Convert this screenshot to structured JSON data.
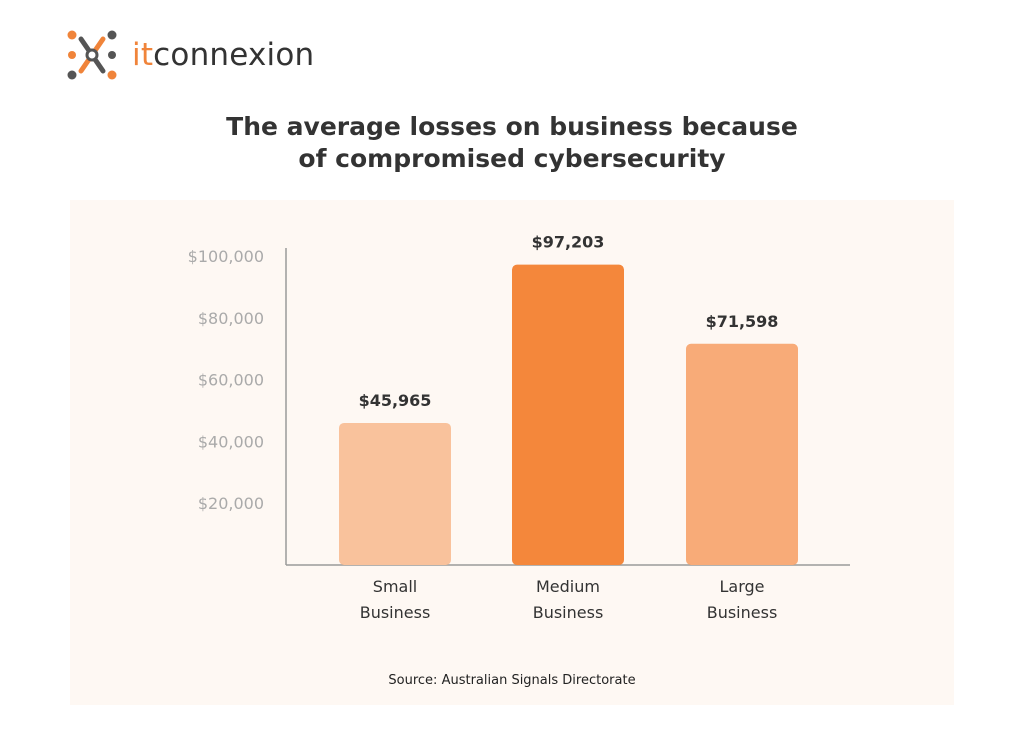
{
  "brand": {
    "prefix": "it",
    "name": "connexion",
    "icon": "network-nodes-icon"
  },
  "colors": {
    "brand_orange": "#f0843a",
    "text_dark": "#333333",
    "axis_label": "#aaaaaa"
  },
  "title_lines": [
    "The average losses on business because",
    "of compromised cybersecurity"
  ],
  "chart_data": {
    "type": "bar",
    "title": "The average losses on business because of compromised cybersecurity",
    "xlabel": "",
    "ylabel": "",
    "categories": [
      [
        "Small",
        "Business"
      ],
      [
        "Medium",
        "Business"
      ],
      [
        "Large",
        "Business"
      ]
    ],
    "values": [
      45965,
      97203,
      71598
    ],
    "value_labels": [
      "$45,965",
      "$97,203",
      "$71,598"
    ],
    "bar_colors": [
      "#f9c29c",
      "#f4873b",
      "#f8ab78"
    ],
    "yticks": [
      20000,
      40000,
      60000,
      80000,
      100000
    ],
    "ytick_labels": [
      "$20,000",
      "$40,000",
      "$60,000",
      "$80,000",
      "$100,000"
    ],
    "ylim": [
      0,
      100000
    ],
    "grid": false,
    "legend": "none"
  },
  "source": "Source: Australian Signals Directorate"
}
